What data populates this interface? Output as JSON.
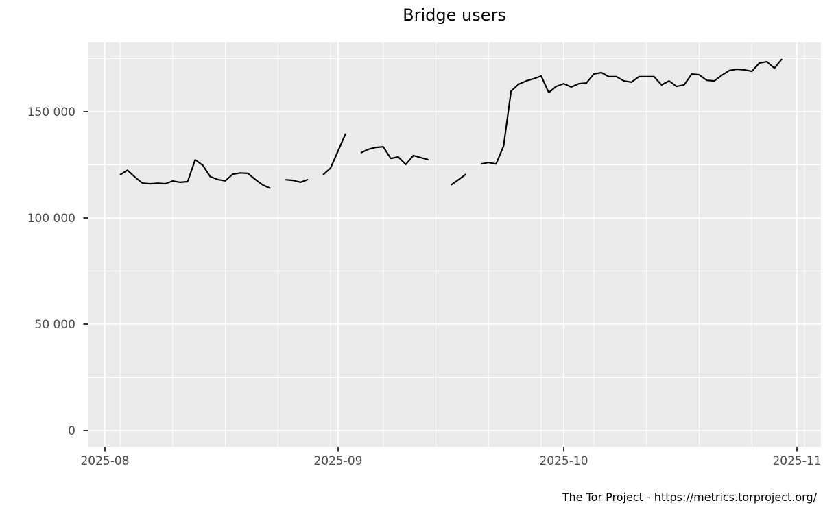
{
  "title": "Bridge users",
  "footer": {
    "text": "The Tor Project - https://metrics.torproject.org/"
  },
  "colors": {
    "panel_background": "#EBEBEB",
    "grid": "#FFFFFF",
    "line": "#000000",
    "axis_text": "#4D4D4D",
    "tick_mark": "#333333",
    "title_text": "#000000"
  },
  "chart_data": {
    "type": "line",
    "title": "Bridge users",
    "xlabel": "",
    "ylabel": "",
    "legend": "none",
    "grid": "on",
    "x_domain": [
      "2025-07-30",
      "2025-11-04"
    ],
    "ylim": [
      0,
      182500
    ],
    "x_ticks": [
      {
        "label": "2025-08",
        "date": "2025-08-01"
      },
      {
        "label": "2025-09",
        "date": "2025-09-01"
      },
      {
        "label": "2025-10",
        "date": "2025-10-01"
      },
      {
        "label": "2025-11",
        "date": "2025-11-01"
      }
    ],
    "x_minor_dates": [
      "2025-08-03",
      "2025-08-10",
      "2025-08-17",
      "2025-08-24",
      "2025-08-31",
      "2025-09-07",
      "2025-09-14",
      "2025-09-21",
      "2025-09-28",
      "2025-10-05",
      "2025-10-12",
      "2025-10-19",
      "2025-10-26",
      "2025-11-02"
    ],
    "y_ticks": [
      {
        "label": "0",
        "value": 0
      },
      {
        "label": "50 000",
        "value": 50000
      },
      {
        "label": "100 000",
        "value": 100000
      },
      {
        "label": "150 000",
        "value": 150000
      }
    ],
    "y_minor_values": [
      25000,
      75000,
      125000,
      175000
    ],
    "series_name": "bridge-users",
    "points": [
      [
        "2025-08-03",
        120300
      ],
      [
        "2025-08-04",
        122500
      ],
      [
        "2025-08-05",
        119200
      ],
      [
        "2025-08-06",
        116400
      ],
      [
        "2025-08-07",
        116100
      ],
      [
        "2025-08-08",
        116400
      ],
      [
        "2025-08-09",
        116100
      ],
      [
        "2025-08-10",
        117400
      ],
      [
        "2025-08-11",
        116800
      ],
      [
        "2025-08-12",
        117100
      ],
      [
        "2025-08-13",
        127400
      ],
      [
        "2025-08-14",
        124800
      ],
      [
        "2025-08-15",
        119500
      ],
      [
        "2025-08-16",
        118100
      ],
      [
        "2025-08-17",
        117500
      ],
      [
        "2025-08-18",
        120600
      ],
      [
        "2025-08-19",
        121200
      ],
      [
        "2025-08-20",
        121000
      ],
      [
        "2025-08-21",
        118100
      ],
      [
        "2025-08-22",
        115500
      ],
      [
        "2025-08-23",
        113900
      ],
      [
        "2025-08-24",
        null
      ],
      [
        "2025-08-25",
        118000
      ],
      [
        "2025-08-26",
        117700
      ],
      [
        "2025-08-27",
        116800
      ],
      [
        "2025-08-28",
        118100
      ],
      [
        "2025-08-29",
        null
      ],
      [
        "2025-08-30",
        120300
      ],
      [
        "2025-08-31",
        123500
      ],
      [
        "2025-09-01",
        131600
      ],
      [
        "2025-09-02",
        139700
      ],
      [
        "2025-09-03",
        null
      ],
      [
        "2025-09-04",
        130600
      ],
      [
        "2025-09-05",
        132300
      ],
      [
        "2025-09-06",
        133200
      ],
      [
        "2025-09-07",
        133500
      ],
      [
        "2025-09-08",
        128000
      ],
      [
        "2025-09-09",
        128700
      ],
      [
        "2025-09-10",
        125200
      ],
      [
        "2025-09-11",
        129400
      ],
      [
        "2025-09-12",
        128400
      ],
      [
        "2025-09-13",
        127400
      ],
      [
        "2025-09-14",
        null
      ],
      [
        "2025-09-15",
        null
      ],
      [
        "2025-09-16",
        115500
      ],
      [
        "2025-09-17",
        118000
      ],
      [
        "2025-09-18",
        120600
      ],
      [
        "2025-09-19",
        null
      ],
      [
        "2025-09-20",
        125400
      ],
      [
        "2025-09-21",
        126100
      ],
      [
        "2025-09-22",
        125400
      ],
      [
        "2025-09-23",
        133900
      ],
      [
        "2025-09-24",
        159700
      ],
      [
        "2025-09-25",
        162900
      ],
      [
        "2025-09-26",
        164500
      ],
      [
        "2025-09-27",
        165500
      ],
      [
        "2025-09-28",
        166800
      ],
      [
        "2025-09-29",
        159000
      ],
      [
        "2025-09-30",
        161900
      ],
      [
        "2025-10-01",
        163200
      ],
      [
        "2025-10-02",
        161600
      ],
      [
        "2025-10-03",
        163200
      ],
      [
        "2025-10-04",
        163500
      ],
      [
        "2025-10-05",
        167700
      ],
      [
        "2025-10-06",
        168400
      ],
      [
        "2025-10-07",
        166500
      ],
      [
        "2025-10-08",
        166500
      ],
      [
        "2025-10-09",
        164500
      ],
      [
        "2025-10-10",
        163900
      ],
      [
        "2025-10-11",
        166500
      ],
      [
        "2025-10-12",
        166500
      ],
      [
        "2025-10-13",
        166500
      ],
      [
        "2025-10-14",
        162600
      ],
      [
        "2025-10-15",
        164500
      ],
      [
        "2025-10-16",
        161900
      ],
      [
        "2025-10-17",
        162600
      ],
      [
        "2025-10-18",
        167700
      ],
      [
        "2025-10-19",
        167400
      ],
      [
        "2025-10-20",
        164800
      ],
      [
        "2025-10-21",
        164500
      ],
      [
        "2025-10-22",
        167100
      ],
      [
        "2025-10-23",
        169400
      ],
      [
        "2025-10-24",
        170000
      ],
      [
        "2025-10-25",
        169700
      ],
      [
        "2025-10-26",
        169000
      ],
      [
        "2025-10-27",
        172900
      ],
      [
        "2025-10-28",
        173500
      ],
      [
        "2025-10-29",
        170500
      ],
      [
        "2025-10-30",
        174800
      ]
    ]
  }
}
